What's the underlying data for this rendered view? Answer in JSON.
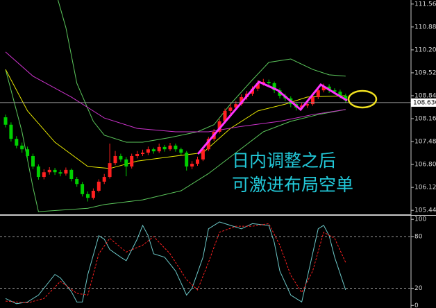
{
  "chart_data": [
    {
      "type": "candlestick",
      "ylim": [
        105.32,
        111.68
      ],
      "yticks": [
        {
          "value": 111.56,
          "label": "111.560"
        },
        {
          "value": 110.88,
          "label": "110.880"
        },
        {
          "value": 110.2,
          "label": "110.200"
        },
        {
          "value": 109.52,
          "label": "109.520"
        },
        {
          "value": 108.84,
          "label": "108.840"
        },
        {
          "value": 108.16,
          "label": "108.160"
        },
        {
          "value": 107.48,
          "label": "107.480"
        },
        {
          "value": 106.8,
          "label": "106.800"
        },
        {
          "value": 106.12,
          "label": "106.120"
        },
        {
          "value": 105.44,
          "label": "105.440"
        }
      ],
      "current_price": 108.636,
      "up_color": "#ff2020",
      "down_color": "#00d000",
      "ohlc": [
        [
          108.2,
          108.28,
          107.9,
          107.98
        ],
        [
          107.98,
          108.05,
          107.48,
          107.56
        ],
        [
          107.56,
          107.64,
          107.28,
          107.36
        ],
        [
          107.36,
          107.45,
          107.15,
          107.25
        ],
        [
          107.25,
          107.33,
          106.95,
          107.05
        ],
        [
          107.05,
          107.12,
          106.66,
          106.74
        ],
        [
          106.74,
          106.8,
          106.35,
          106.43
        ],
        [
          106.43,
          106.66,
          106.36,
          106.57
        ],
        [
          106.57,
          106.72,
          106.5,
          106.64
        ],
        [
          106.64,
          106.7,
          106.49,
          106.57
        ],
        [
          106.57,
          106.64,
          106.45,
          106.53
        ],
        [
          106.53,
          106.71,
          106.47,
          106.64
        ],
        [
          106.64,
          106.68,
          106.3,
          106.37
        ],
        [
          106.37,
          106.43,
          106.14,
          106.22
        ],
        [
          106.22,
          106.28,
          105.85,
          105.92
        ],
        [
          105.92,
          106.0,
          105.7,
          105.81
        ],
        [
          105.81,
          106.09,
          105.76,
          106.02
        ],
        [
          106.02,
          106.36,
          105.97,
          106.29
        ],
        [
          106.29,
          106.52,
          106.22,
          106.43
        ],
        [
          106.43,
          107.42,
          106.38,
          106.84
        ],
        [
          106.84,
          107.2,
          106.78,
          107.05
        ],
        [
          107.05,
          107.12,
          106.88,
          106.95
        ],
        [
          106.95,
          107.02,
          106.45,
          106.74
        ],
        [
          106.74,
          107.12,
          106.68,
          107.05
        ],
        [
          107.05,
          107.2,
          106.98,
          107.11
        ],
        [
          107.11,
          107.24,
          107.05,
          107.15
        ],
        [
          107.15,
          107.33,
          107.08,
          107.25
        ],
        [
          107.25,
          107.3,
          107.12,
          107.19
        ],
        [
          107.19,
          107.42,
          107.14,
          107.32
        ],
        [
          107.32,
          107.38,
          107.18,
          107.25
        ],
        [
          107.25,
          107.44,
          107.2,
          107.36
        ],
        [
          107.36,
          107.42,
          107.18,
          107.25
        ],
        [
          107.25,
          107.3,
          107.08,
          107.15
        ],
        [
          107.15,
          107.2,
          106.62,
          106.74
        ],
        [
          106.74,
          106.9,
          106.66,
          106.82
        ],
        [
          106.82,
          107.03,
          106.76,
          106.95
        ],
        [
          106.95,
          107.32,
          106.9,
          107.25
        ],
        [
          107.25,
          107.62,
          107.2,
          107.56
        ],
        [
          107.56,
          107.85,
          107.5,
          107.77
        ],
        [
          107.77,
          108.15,
          107.72,
          108.08
        ],
        [
          108.08,
          108.46,
          108.02,
          108.39
        ],
        [
          108.39,
          108.6,
          108.3,
          108.49
        ],
        [
          108.49,
          108.68,
          108.42,
          108.59
        ],
        [
          108.59,
          108.88,
          108.54,
          108.8
        ],
        [
          108.8,
          108.98,
          108.72,
          108.9
        ],
        [
          108.9,
          109.12,
          108.84,
          109.05
        ],
        [
          109.05,
          109.3,
          108.98,
          109.21
        ],
        [
          109.21,
          109.34,
          109.14,
          109.25
        ],
        [
          109.25,
          109.32,
          109.12,
          109.21
        ],
        [
          109.21,
          109.26,
          108.92,
          109.0
        ],
        [
          109.0,
          109.06,
          108.76,
          108.84
        ],
        [
          108.84,
          108.9,
          108.68,
          108.76
        ],
        [
          108.76,
          108.82,
          108.5,
          108.59
        ],
        [
          108.59,
          108.64,
          108.4,
          108.49
        ],
        [
          108.49,
          108.62,
          108.42,
          108.55
        ],
        [
          108.55,
          108.68,
          108.48,
          108.59
        ],
        [
          108.59,
          108.88,
          108.54,
          108.8
        ],
        [
          108.8,
          109.1,
          108.74,
          109.0
        ],
        [
          109.0,
          109.2,
          108.94,
          109.11
        ],
        [
          109.11,
          109.18,
          108.92,
          109.0
        ],
        [
          109.0,
          109.06,
          108.88,
          108.96
        ],
        [
          108.96,
          109.02,
          108.76,
          108.84
        ],
        [
          108.84,
          108.9,
          108.62,
          108.7
        ]
      ],
      "overlays": [
        {
          "color": "#5cc85c",
          "x": [
            9,
            11,
            13,
            16,
            18,
            22,
            25,
            30,
            35,
            38,
            41,
            45,
            48,
            52,
            56,
            59,
            62
          ],
          "values": [
            112.0,
            110.86,
            109.21,
            108.08,
            107.67,
            107.46,
            107.46,
            107.6,
            107.77,
            107.98,
            108.59,
            109.31,
            109.83,
            109.93,
            109.62,
            109.46,
            109.42
          ]
        },
        {
          "color": "#5cc85c",
          "x": [
            0,
            3,
            5,
            6,
            15,
            18,
            25,
            32,
            37,
            42,
            47,
            52,
            57,
            62
          ],
          "values": [
            109.62,
            107.77,
            106.12,
            105.4,
            105.5,
            105.61,
            105.75,
            106.02,
            106.53,
            107.15,
            107.77,
            108.08,
            108.28,
            108.43
          ]
        },
        {
          "color": "#e6e600",
          "x": [
            0,
            4,
            9,
            15,
            19,
            24,
            31,
            36,
            41,
            46,
            51,
            55,
            62
          ],
          "values": [
            109.62,
            108.39,
            107.46,
            106.74,
            106.68,
            106.9,
            107.05,
            107.15,
            107.87,
            108.39,
            108.59,
            108.8,
            108.84
          ]
        },
        {
          "color": "#cc33cc",
          "x": [
            0,
            5,
            12,
            18,
            24,
            31,
            37,
            43,
            50,
            56,
            62
          ],
          "values": [
            110.14,
            109.42,
            108.8,
            108.18,
            107.87,
            107.77,
            107.77,
            107.93,
            108.08,
            108.28,
            108.43
          ]
        }
      ],
      "annotations": [
        "日内调整之后",
        "可激进布局空单"
      ]
    },
    {
      "type": "line",
      "ylim": [
        -3,
        105
      ],
      "yticks": [
        100,
        80,
        20,
        0
      ],
      "levels": [
        80,
        20
      ],
      "series": [
        {
          "color": "#6cc8c8",
          "x": [
            0,
            2,
            4,
            6,
            9,
            10,
            12,
            13,
            14,
            15,
            17,
            18,
            19,
            21,
            22,
            24,
            25,
            26,
            27,
            29,
            31,
            33,
            34,
            36,
            37,
            39,
            41,
            43,
            45,
            48,
            49,
            50,
            52,
            54,
            55,
            57,
            58,
            59,
            60,
            62
          ],
          "values": [
            8,
            2,
            4,
            12,
            36,
            32,
            16,
            4,
            4,
            36,
            81,
            77,
            65,
            56,
            52,
            77,
            93,
            81,
            60,
            56,
            40,
            12,
            20,
            56,
            89,
            97,
            93,
            89,
            95,
            93,
            73,
            40,
            12,
            4,
            32,
            89,
            93,
            81,
            56,
            18
          ]
        },
        {
          "color": "#ff2020",
          "dashed": true,
          "x": [
            0,
            4,
            7,
            10,
            13,
            15,
            17,
            19,
            22,
            25,
            27,
            30,
            33,
            35,
            37,
            39,
            42,
            45,
            48,
            50,
            52,
            54,
            56,
            58,
            60,
            62
          ],
          "values": [
            5,
            3,
            8,
            28,
            14,
            12,
            60,
            78,
            62,
            70,
            80,
            60,
            30,
            18,
            50,
            85,
            92,
            92,
            95,
            70,
            35,
            15,
            40,
            85,
            78,
            50
          ]
        }
      ]
    }
  ]
}
